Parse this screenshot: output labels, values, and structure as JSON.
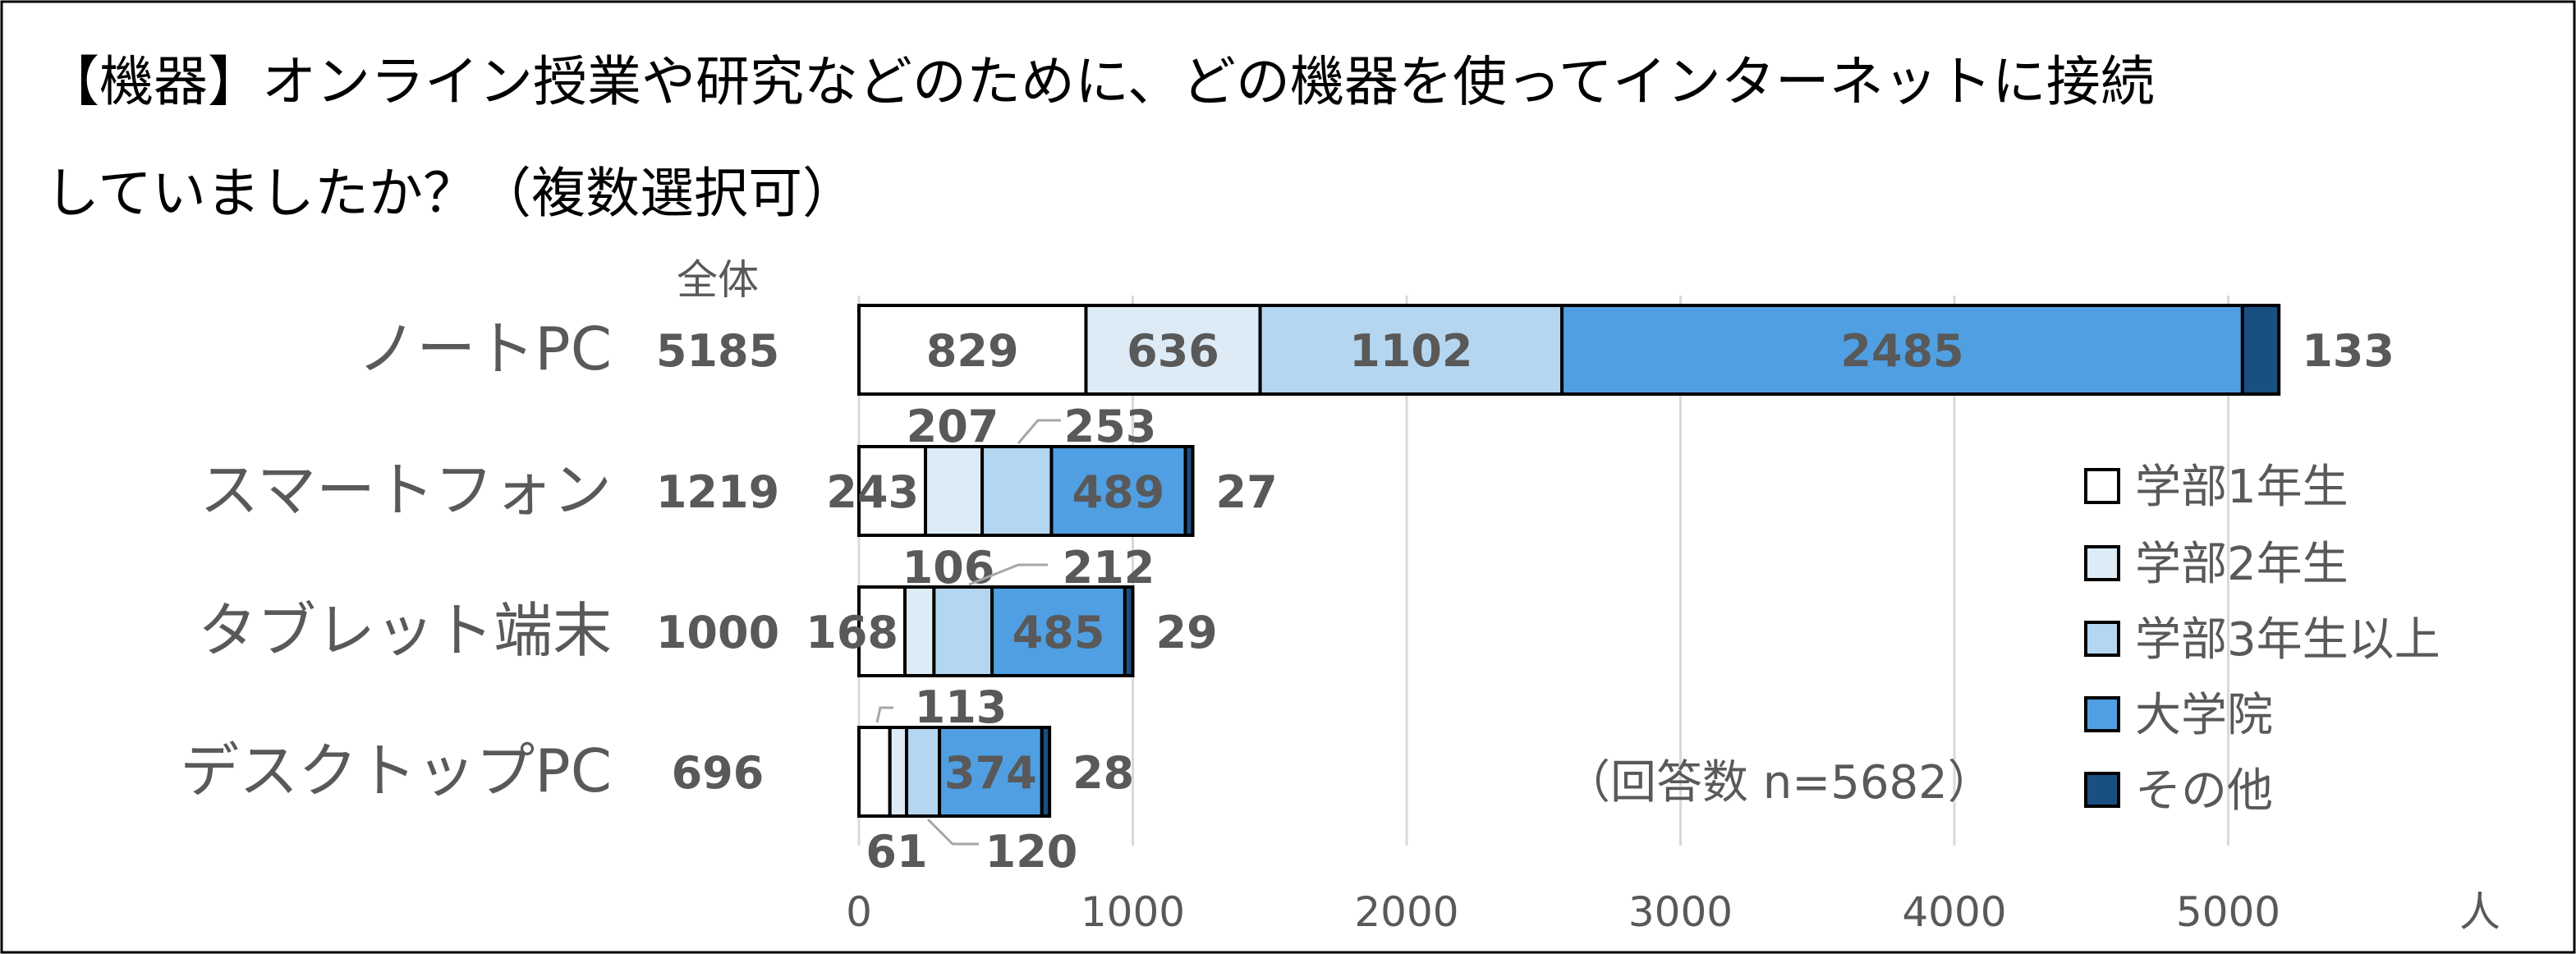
{
  "title_line1": "【機器】オンライン授業や研究などのために、どの機器を使ってインターネットに接続",
  "title_line2": "していましたか？（複数選択可）",
  "note": "（回答数 n=5682）",
  "chart_data": {
    "type": "bar",
    "orientation": "horizontal",
    "stacked": true,
    "title": "【機器】オンライン授業や研究などのために、どの機器を使ってインターネットに接続していましたか？（複数選択可）",
    "xlabel": "人",
    "xlim": [
      0,
      5200
    ],
    "xticks": [
      "0",
      "1000",
      "2000",
      "3000",
      "4000",
      "5000"
    ],
    "grid": true,
    "legend_position": "right",
    "total_header": "全体",
    "categories": [
      "ノートPC",
      "スマートフォン",
      "タブレット端末",
      "デスクトップPC"
    ],
    "totals": [
      "5185",
      "1219",
      "1000",
      "696"
    ],
    "series": [
      {
        "name": "学部1年生",
        "color": "#ffffff",
        "values": [
          829,
          243,
          168,
          113
        ]
      },
      {
        "name": "学部2年生",
        "color": "#ddebf7",
        "values": [
          636,
          207,
          106,
          61
        ]
      },
      {
        "name": "学部3年生以上",
        "color": "#b4d6f0",
        "values": [
          1102,
          253,
          212,
          120
        ]
      },
      {
        "name": "大学院",
        "color": "#4f9fe2",
        "values": [
          2485,
          489,
          485,
          374
        ]
      },
      {
        "name": "その他",
        "color": "#1a4f82",
        "values": [
          133,
          27,
          29,
          28
        ]
      }
    ]
  }
}
